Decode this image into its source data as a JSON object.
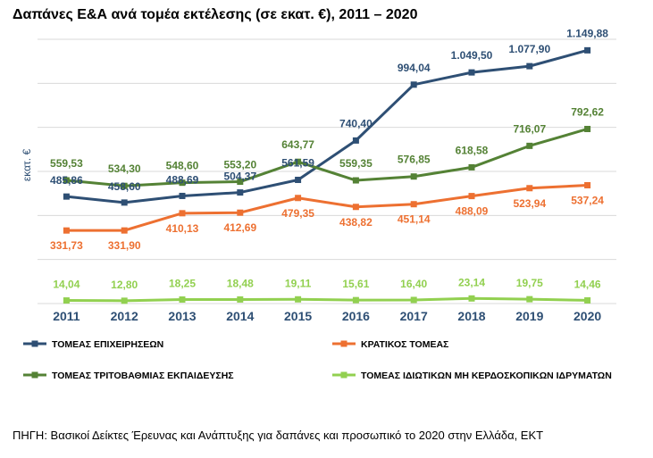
{
  "chart_data": {
    "type": "line",
    "title": "Δαπάνες Ε&Α ανά τομέα εκτέλεσης (σε εκατ. €), 2011 – 2020",
    "ylabel": "εκατ. €",
    "xlabel": "",
    "x": [
      "2011",
      "2012",
      "2013",
      "2014",
      "2015",
      "2016",
      "2017",
      "2018",
      "2019",
      "2020"
    ],
    "ylim": [
      0,
      1200
    ],
    "grid": true,
    "legend_position": "bottom",
    "series": [
      {
        "name": "ΤΟΜΕΑΣ ΕΠΙΧΕΙΡΗΣΕΩΝ",
        "color": "#2e4f74",
        "values": [
          485.86,
          458.6,
          488.69,
          504.37,
          561.59,
          740.4,
          994.04,
          1049.5,
          1077.9,
          1149.88
        ],
        "labels": [
          "485,86",
          "458,60",
          "488,69",
          "504,37",
          "561,59",
          "740,40",
          "994,04",
          "1.049,50",
          "1.077,90",
          "1.149,88"
        ]
      },
      {
        "name": "ΚΡΑΤΙΚΟΣ ΤΟΜΕΑΣ",
        "color": "#ed7031",
        "values": [
          331.73,
          331.9,
          410.13,
          412.69,
          479.35,
          438.82,
          451.14,
          488.09,
          523.94,
          537.24
        ],
        "labels": [
          "331,73",
          "331,90",
          "410,13",
          "412,69",
          "479,35",
          "438,82",
          "451,14",
          "488,09",
          "523,94",
          "537,24"
        ]
      },
      {
        "name": "ΤΟΜΕΑΣ ΤΡΙΤΟΒΑΘΜΙΑΣ ΕΚΠΑΙΔΕΥΣΗΣ",
        "color": "#548235",
        "values": [
          559.53,
          534.3,
          548.6,
          553.2,
          643.77,
          559.35,
          576.85,
          618.58,
          716.07,
          792.62
        ],
        "labels": [
          "559,53",
          "534,30",
          "548,60",
          "553,20",
          "643,77",
          "559,35",
          "576,85",
          "618,58",
          "716,07",
          "792,62"
        ]
      },
      {
        "name": "ΤΟΜΕΑΣ ΙΔΙΩΤΙΚΩΝ ΜΗ ΚΕΡΔΟΣΚΟΠΙΚΩΝ ΙΔΡΥΜΑΤΩΝ",
        "color": "#92d050",
        "values": [
          14.04,
          12.8,
          18.25,
          18.48,
          19.11,
          15.61,
          16.4,
          23.14,
          19.75,
          14.46
        ],
        "labels": [
          "14,04",
          "12,80",
          "18,25",
          "18,48",
          "19,11",
          "15,61",
          "16,40",
          "23,14",
          "19,75",
          "14,46"
        ]
      }
    ]
  },
  "source": "ΠΗΓΗ: Βασικοί Δείκτες Έρευνας και Ανάπτυξης για δαπάνες και προσωπικό το 2020 στην Ελλάδα, ΕΚΤ"
}
